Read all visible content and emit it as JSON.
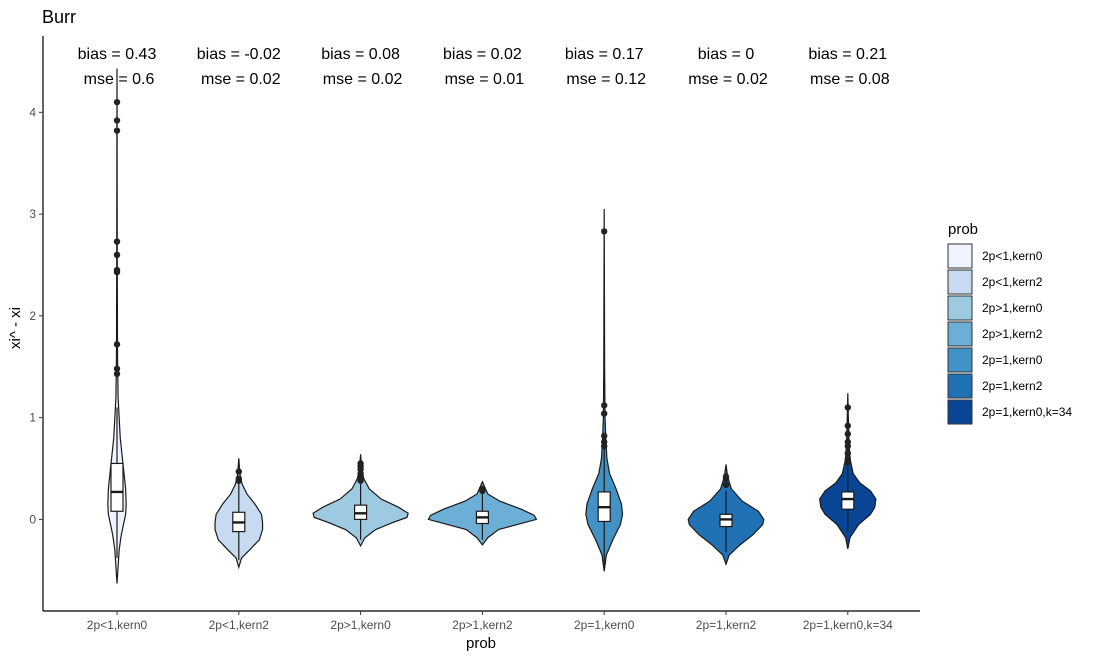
{
  "chart_data": {
    "type": "violin",
    "title": "Burr",
    "xlabel": "prob",
    "ylabel": "xi^ - xi",
    "ylim": [
      -0.9,
      4.75
    ],
    "y_ticks": [
      0,
      1,
      2,
      3,
      4
    ],
    "grid": false,
    "legend": {
      "title": "prob",
      "position": "right"
    },
    "categories": [
      "2p<1,kern0",
      "2p<1,kern2",
      "2p>1,kern0",
      "2p>1,kern2",
      "2p=1,kern0",
      "2p=1,kern2",
      "2p=1,kern0,k=34"
    ],
    "colors": [
      "#eff3ff",
      "#c6dbef",
      "#9ecae1",
      "#6baed6",
      "#4292c6",
      "#2171b5",
      "#084594"
    ],
    "annotations": [
      {
        "bias": "bias = 0.43",
        "mse": "mse = 0.6"
      },
      {
        "bias": "bias = -0.02",
        "mse": "mse = 0.02"
      },
      {
        "bias": "bias = 0.08",
        "mse": "mse = 0.02"
      },
      {
        "bias": "bias = 0.02",
        "mse": "mse = 0.01"
      },
      {
        "bias": "bias = 0.17",
        "mse": "mse = 0.12"
      },
      {
        "bias": "bias = 0",
        "mse": "mse = 0.02"
      },
      {
        "bias": "bias = 0.21",
        "mse": "mse = 0.08"
      }
    ],
    "series": [
      {
        "name": "2p<1,kern0",
        "violin_min": -0.63,
        "violin_max": 4.43,
        "box": {
          "q1": 0.08,
          "median": 0.27,
          "q3": 0.55,
          "whisker_low": -0.38,
          "whisker_high": 1.1
        },
        "outliers": [
          4.1,
          3.92,
          3.82,
          2.73,
          2.6,
          2.45,
          2.43,
          1.72,
          1.48,
          1.43
        ],
        "density": [
          [
            -0.63,
            0.0
          ],
          [
            -0.3,
            0.04
          ],
          [
            -0.15,
            0.08
          ],
          [
            -0.05,
            0.12
          ],
          [
            0.0,
            0.14
          ],
          [
            0.05,
            0.16
          ],
          [
            0.15,
            0.17
          ],
          [
            0.3,
            0.16
          ],
          [
            0.45,
            0.13
          ],
          [
            0.6,
            0.1
          ],
          [
            0.8,
            0.06
          ],
          [
            1.0,
            0.04
          ],
          [
            1.2,
            0.02
          ],
          [
            1.6,
            0.01
          ],
          [
            2.5,
            0.005
          ],
          [
            4.43,
            0.0
          ]
        ]
      },
      {
        "name": "2p<1,kern2",
        "violin_min": -0.47,
        "violin_max": 0.6,
        "box": {
          "q1": -0.12,
          "median": -0.03,
          "q3": 0.07,
          "whisker_low": -0.4,
          "whisker_high": 0.36
        },
        "outliers": [
          0.47,
          0.4,
          0.38
        ],
        "density": [
          [
            -0.47,
            0.0
          ],
          [
            -0.38,
            0.05
          ],
          [
            -0.3,
            0.2
          ],
          [
            -0.2,
            0.38
          ],
          [
            -0.1,
            0.44
          ],
          [
            -0.03,
            0.44
          ],
          [
            0.05,
            0.42
          ],
          [
            0.15,
            0.3
          ],
          [
            0.25,
            0.15
          ],
          [
            0.35,
            0.06
          ],
          [
            0.45,
            0.02
          ],
          [
            0.6,
            0.0
          ]
        ]
      },
      {
        "name": "2p>1,kern0",
        "violin_min": -0.26,
        "violin_max": 0.64,
        "box": {
          "q1": 0.0,
          "median": 0.06,
          "q3": 0.14,
          "whisker_low": -0.2,
          "whisker_high": 0.35
        },
        "outliers": [
          0.55,
          0.52,
          0.49,
          0.45,
          0.41,
          0.38
        ],
        "density": [
          [
            -0.26,
            0.0
          ],
          [
            -0.18,
            0.08
          ],
          [
            -0.1,
            0.28
          ],
          [
            -0.03,
            0.6
          ],
          [
            0.02,
            0.86
          ],
          [
            0.06,
            0.88
          ],
          [
            0.12,
            0.7
          ],
          [
            0.2,
            0.38
          ],
          [
            0.3,
            0.16
          ],
          [
            0.4,
            0.06
          ],
          [
            0.5,
            0.02
          ],
          [
            0.64,
            0.0
          ]
        ]
      },
      {
        "name": "2p>1,kern2",
        "violin_min": -0.25,
        "violin_max": 0.37,
        "box": {
          "q1": -0.04,
          "median": 0.02,
          "q3": 0.08,
          "whisker_low": -0.2,
          "whisker_high": 0.26
        },
        "outliers": [
          0.3,
          0.28
        ],
        "density": [
          [
            -0.25,
            0.0
          ],
          [
            -0.18,
            0.1
          ],
          [
            -0.1,
            0.3
          ],
          [
            -0.04,
            0.72
          ],
          [
            0.0,
            1.0
          ],
          [
            0.04,
            0.96
          ],
          [
            0.1,
            0.72
          ],
          [
            0.18,
            0.32
          ],
          [
            0.25,
            0.1
          ],
          [
            0.37,
            0.0
          ]
        ]
      },
      {
        "name": "2p=1,kern0",
        "violin_min": -0.51,
        "violin_max": 3.05,
        "box": {
          "q1": -0.02,
          "median": 0.12,
          "q3": 0.27,
          "whisker_low": -0.45,
          "whisker_high": 0.7
        },
        "outliers": [
          2.83,
          1.12,
          1.04,
          0.82,
          0.76,
          0.72
        ],
        "density": [
          [
            -0.51,
            0.0
          ],
          [
            -0.35,
            0.04
          ],
          [
            -0.2,
            0.16
          ],
          [
            -0.05,
            0.3
          ],
          [
            0.05,
            0.34
          ],
          [
            0.15,
            0.32
          ],
          [
            0.3,
            0.22
          ],
          [
            0.45,
            0.1
          ],
          [
            0.6,
            0.05
          ],
          [
            0.8,
            0.03
          ],
          [
            1.0,
            0.015
          ],
          [
            1.5,
            0.008
          ],
          [
            3.05,
            0.0
          ]
        ]
      },
      {
        "name": "2p=1,kern2",
        "violin_min": -0.44,
        "violin_max": 0.54,
        "box": {
          "q1": -0.07,
          "median": 0.0,
          "q3": 0.05,
          "whisker_low": -0.32,
          "whisker_high": 0.28
        },
        "outliers": [
          0.42,
          0.4,
          0.34
        ],
        "density": [
          [
            -0.44,
            0.0
          ],
          [
            -0.35,
            0.06
          ],
          [
            -0.25,
            0.26
          ],
          [
            -0.15,
            0.5
          ],
          [
            -0.05,
            0.68
          ],
          [
            0.0,
            0.7
          ],
          [
            0.08,
            0.6
          ],
          [
            0.18,
            0.3
          ],
          [
            0.3,
            0.1
          ],
          [
            0.42,
            0.03
          ],
          [
            0.54,
            0.0
          ]
        ]
      },
      {
        "name": "2p=1,kern0,k=34",
        "violin_min": -0.29,
        "violin_max": 1.24,
        "box": {
          "q1": 0.1,
          "median": 0.2,
          "q3": 0.27,
          "whisker_low": -0.12,
          "whisker_high": 0.55
        },
        "outliers": [
          1.1,
          0.92,
          0.84,
          0.76,
          0.72,
          0.65,
          0.6,
          0.56
        ],
        "density": [
          [
            -0.29,
            0.0
          ],
          [
            -0.18,
            0.04
          ],
          [
            -0.05,
            0.2
          ],
          [
            0.05,
            0.42
          ],
          [
            0.12,
            0.5
          ],
          [
            0.2,
            0.52
          ],
          [
            0.28,
            0.42
          ],
          [
            0.36,
            0.22
          ],
          [
            0.45,
            0.1
          ],
          [
            0.6,
            0.04
          ],
          [
            0.8,
            0.02
          ],
          [
            1.0,
            0.01
          ],
          [
            1.24,
            0.0
          ]
        ]
      }
    ]
  }
}
